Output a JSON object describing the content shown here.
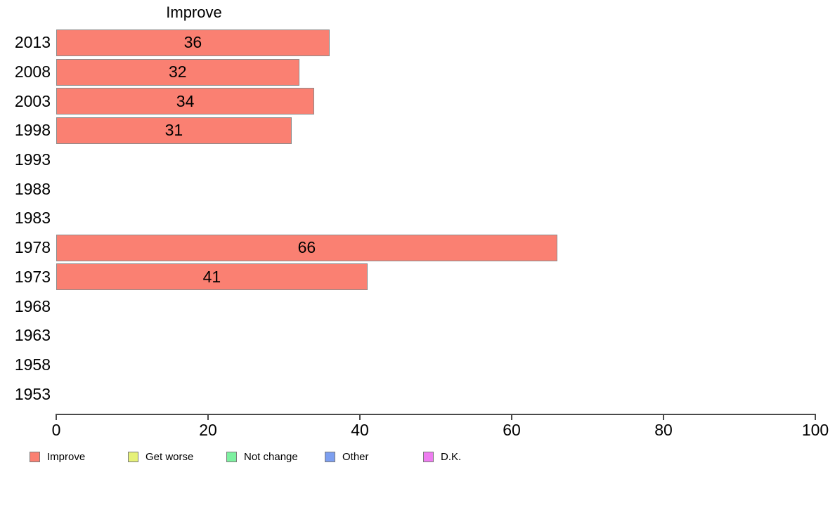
{
  "chart_data": {
    "type": "bar",
    "orientation": "horizontal",
    "title": "Improve",
    "categories": [
      "2013",
      "2008",
      "2003",
      "1998",
      "1993",
      "1988",
      "1983",
      "1978",
      "1973",
      "1968",
      "1963",
      "1958",
      "1953"
    ],
    "values": [
      36,
      32,
      34,
      31,
      null,
      null,
      null,
      66,
      41,
      null,
      null,
      null,
      null
    ],
    "xlim": [
      0,
      100
    ],
    "x_ticks": [
      0,
      20,
      40,
      60,
      80,
      100
    ],
    "grid": false,
    "bar_color": "#fa8072",
    "bar_border_color": "#8b8b8b",
    "legend_position": "bottom",
    "legend": [
      {
        "label": "Improve",
        "color": "#fa8072"
      },
      {
        "label": "Get worse",
        "color": "#e6f178"
      },
      {
        "label": "Not change",
        "color": "#7df0a0"
      },
      {
        "label": "Other",
        "color": "#7d9ff0"
      },
      {
        "label": "D.K.",
        "color": "#ee7df0"
      }
    ]
  }
}
